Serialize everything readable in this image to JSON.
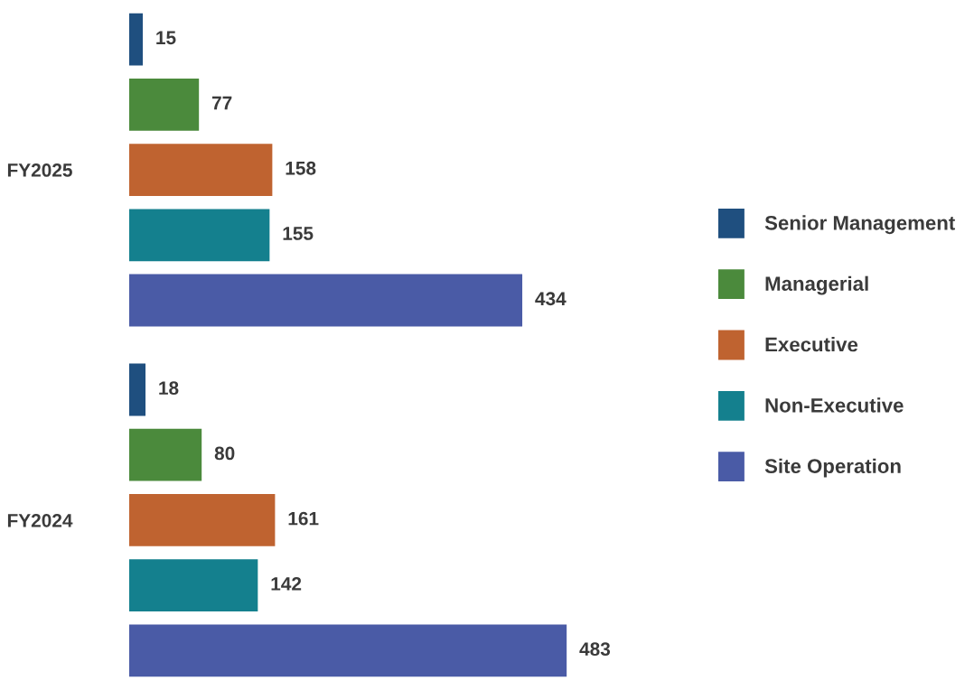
{
  "chart_data": {
    "type": "bar",
    "orientation": "horizontal",
    "categories": [
      "FY2025",
      "FY2024"
    ],
    "series": [
      {
        "name": "Senior Management",
        "color": "#1f4f7f",
        "values": [
          15,
          18
        ]
      },
      {
        "name": "Managerial",
        "color": "#4b8a3c",
        "values": [
          77,
          80
        ]
      },
      {
        "name": "Executive",
        "color": "#bf6330",
        "values": [
          158,
          161
        ]
      },
      {
        "name": "Non-Executive",
        "color": "#14808e",
        "values": [
          155,
          142
        ]
      },
      {
        "name": "Site Operation",
        "color": "#4a5ba6",
        "values": [
          434,
          483
        ]
      }
    ],
    "data_labels": true,
    "legend": "right",
    "grid": false
  }
}
